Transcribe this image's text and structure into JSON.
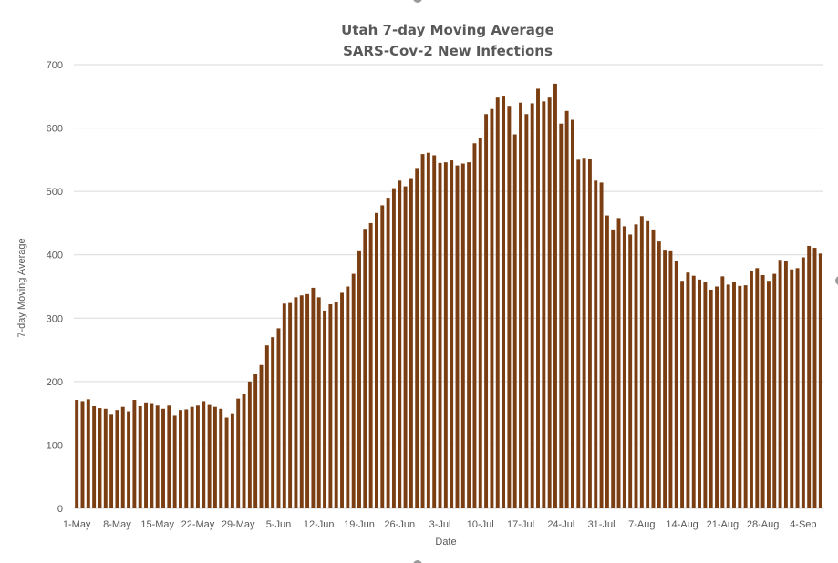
{
  "chart_data": {
    "type": "bar",
    "title": [
      "Utah 7-day Moving Average",
      "SARS-Cov-2 New Infections"
    ],
    "xlabel": "Date",
    "ylabel": "7-day Moving Average",
    "ylim": [
      0,
      700
    ],
    "yticks": [
      0,
      100,
      200,
      300,
      400,
      500,
      600,
      700
    ],
    "grid": true,
    "legend": "none",
    "color": "#7a3e12",
    "start_date": "2020-05-01",
    "xtick_every": 7,
    "xtick_labels": [
      "1-May",
      "8-May",
      "15-May",
      "22-May",
      "29-May",
      "5-Jun",
      "12-Jun",
      "19-Jun",
      "26-Jun",
      "3-Jul",
      "10-Jul",
      "17-Jul",
      "24-Jul",
      "31-Jul",
      "7-Aug",
      "14-Aug",
      "21-Aug",
      "28-Aug",
      "4-Sep"
    ],
    "values": [
      171,
      169,
      172,
      161,
      158,
      157,
      149,
      155,
      160,
      153,
      171,
      161,
      167,
      166,
      162,
      157,
      162,
      146,
      155,
      156,
      160,
      162,
      169,
      163,
      160,
      157,
      143,
      150,
      173,
      181,
      200,
      212,
      226,
      257,
      270,
      284,
      323,
      324,
      333,
      336,
      338,
      348,
      333,
      312,
      322,
      325,
      340,
      350,
      370,
      407,
      441,
      450,
      466,
      478,
      490,
      505,
      517,
      508,
      521,
      537,
      559,
      561,
      557,
      545,
      546,
      549,
      541,
      544,
      546,
      576,
      584,
      622,
      630,
      648,
      651,
      635,
      590,
      640,
      622,
      639,
      662,
      642,
      648,
      670,
      607,
      627,
      613,
      550,
      553,
      551,
      517,
      514,
      462,
      440,
      458,
      445,
      432,
      448,
      461,
      453,
      440,
      421,
      408,
      407,
      390,
      359,
      372,
      367,
      361,
      357,
      345,
      350,
      366,
      353,
      357,
      351,
      352,
      374,
      379,
      368,
      359,
      370,
      392,
      391,
      377,
      379,
      396,
      414,
      411,
      402
    ]
  }
}
